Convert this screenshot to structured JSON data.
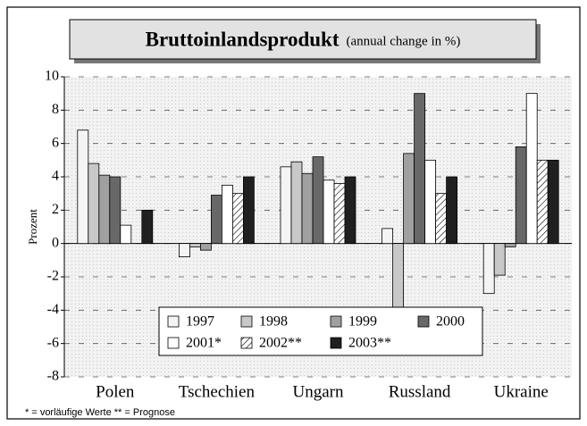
{
  "chart_data": {
    "type": "bar",
    "title": "Bruttoinlandsprodukt",
    "subtitle": "(annual change in %)",
    "y_label": "Prozent",
    "footnote": "* = vorläufige Werte  ** = Prognose",
    "categories": [
      "Polen",
      "Tschechien",
      "Ungarn",
      "Russland",
      "Ukraine"
    ],
    "series": [
      {
        "name": "1997",
        "color": "#f4f4f4",
        "values": [
          6.8,
          -0.8,
          4.6,
          0.9,
          -3.0
        ]
      },
      {
        "name": "1998",
        "color": "#c8c8c8",
        "values": [
          4.8,
          -0.2,
          4.9,
          -4.0,
          -1.9
        ]
      },
      {
        "name": "1999",
        "color": "#a0a0a0",
        "values": [
          4.1,
          -0.4,
          4.2,
          5.4,
          -0.2
        ]
      },
      {
        "name": "2000",
        "color": "#686868",
        "values": [
          4.0,
          2.9,
          5.2,
          9.0,
          5.8
        ]
      },
      {
        "name": "2001*",
        "color": "#ffffff",
        "values": [
          1.1,
          3.5,
          3.8,
          5.0,
          9.0
        ]
      },
      {
        "name": "2002**",
        "color": "#ffffff",
        "pattern": "hatch",
        "values": [
          null,
          3.0,
          3.6,
          3.0,
          5.0
        ]
      },
      {
        "name": "2003**",
        "color": "#202020",
        "values": [
          2.0,
          4.0,
          4.0,
          4.0,
          5.0
        ]
      }
    ],
    "ylim": [
      -8,
      10
    ],
    "yticks": [
      -8,
      -6,
      -4,
      -2,
      0,
      2,
      4,
      6,
      8,
      10
    ],
    "grid": true
  }
}
